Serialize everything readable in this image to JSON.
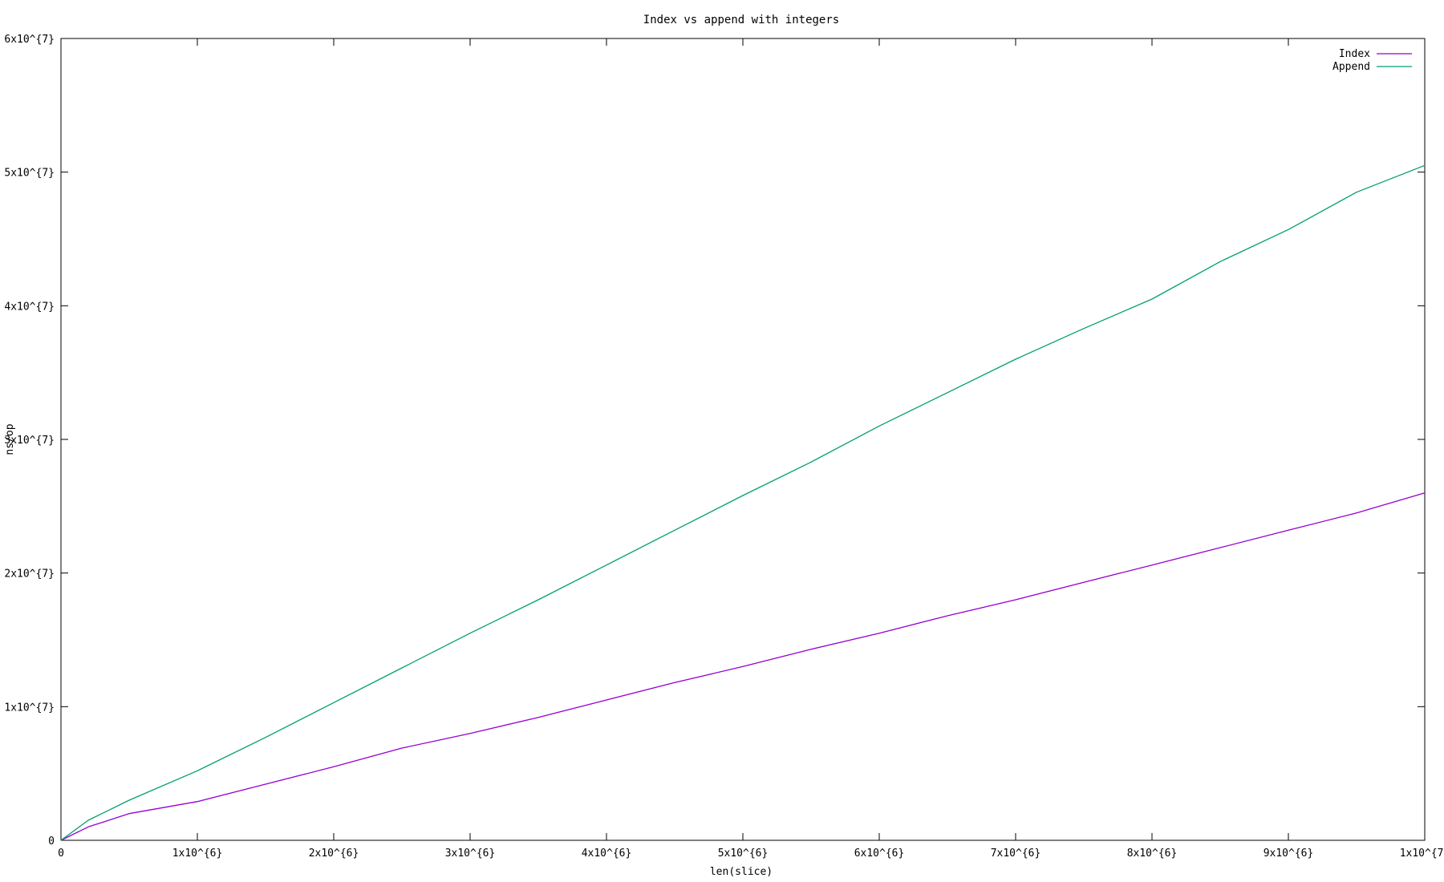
{
  "chart_data": {
    "type": "line",
    "title": "Index vs append with integers",
    "xlabel": "len(slice)",
    "ylabel": "ns/op",
    "xlim": [
      0,
      10000000
    ],
    "ylim": [
      0,
      60000000
    ],
    "grid": false,
    "legend_position": "top-right",
    "x_ticks": [
      {
        "value": 0,
        "label": "0"
      },
      {
        "value": 1000000,
        "label": "1x10^{6}"
      },
      {
        "value": 2000000,
        "label": "2x10^{6}"
      },
      {
        "value": 3000000,
        "label": "3x10^{6}"
      },
      {
        "value": 4000000,
        "label": "4x10^{6}"
      },
      {
        "value": 5000000,
        "label": "5x10^{6}"
      },
      {
        "value": 6000000,
        "label": "6x10^{6}"
      },
      {
        "value": 7000000,
        "label": "7x10^{6}"
      },
      {
        "value": 8000000,
        "label": "8x10^{6}"
      },
      {
        "value": 9000000,
        "label": "9x10^{6}"
      },
      {
        "value": 10000000,
        "label": "1x10^{7}"
      }
    ],
    "y_ticks": [
      {
        "value": 0,
        "label": "0"
      },
      {
        "value": 10000000,
        "label": "1x10^{7}"
      },
      {
        "value": 20000000,
        "label": "2x10^{7}"
      },
      {
        "value": 30000000,
        "label": "3x10^{7}"
      },
      {
        "value": 40000000,
        "label": "4x10^{7}"
      },
      {
        "value": 50000000,
        "label": "5x10^{7}"
      },
      {
        "value": 60000000,
        "label": "6x10^{7}"
      }
    ],
    "x": [
      0,
      200000,
      500000,
      1000000,
      1500000,
      2000000,
      2500000,
      3000000,
      3500000,
      4000000,
      4500000,
      5000000,
      5500000,
      6000000,
      6500000,
      7000000,
      7500000,
      8000000,
      8500000,
      9000000,
      9500000,
      10000000
    ],
    "series": [
      {
        "name": "Index",
        "color": "#9400d3",
        "values": [
          0,
          1000000,
          2000000,
          2900000,
          4200000,
          5500000,
          6900000,
          8000000,
          9200000,
          10500000,
          11800000,
          13000000,
          14300000,
          15500000,
          16800000,
          18000000,
          19300000,
          20600000,
          21900000,
          23200000,
          24500000,
          26000000
        ]
      },
      {
        "name": "Append",
        "color": "#009e73",
        "values": [
          0,
          1500000,
          3000000,
          5200000,
          7700000,
          10300000,
          12900000,
          15500000,
          18000000,
          20600000,
          23200000,
          25800000,
          28300000,
          31000000,
          33500000,
          36000000,
          38300000,
          40500000,
          43300000,
          45700000,
          48500000,
          50500000
        ]
      }
    ]
  }
}
